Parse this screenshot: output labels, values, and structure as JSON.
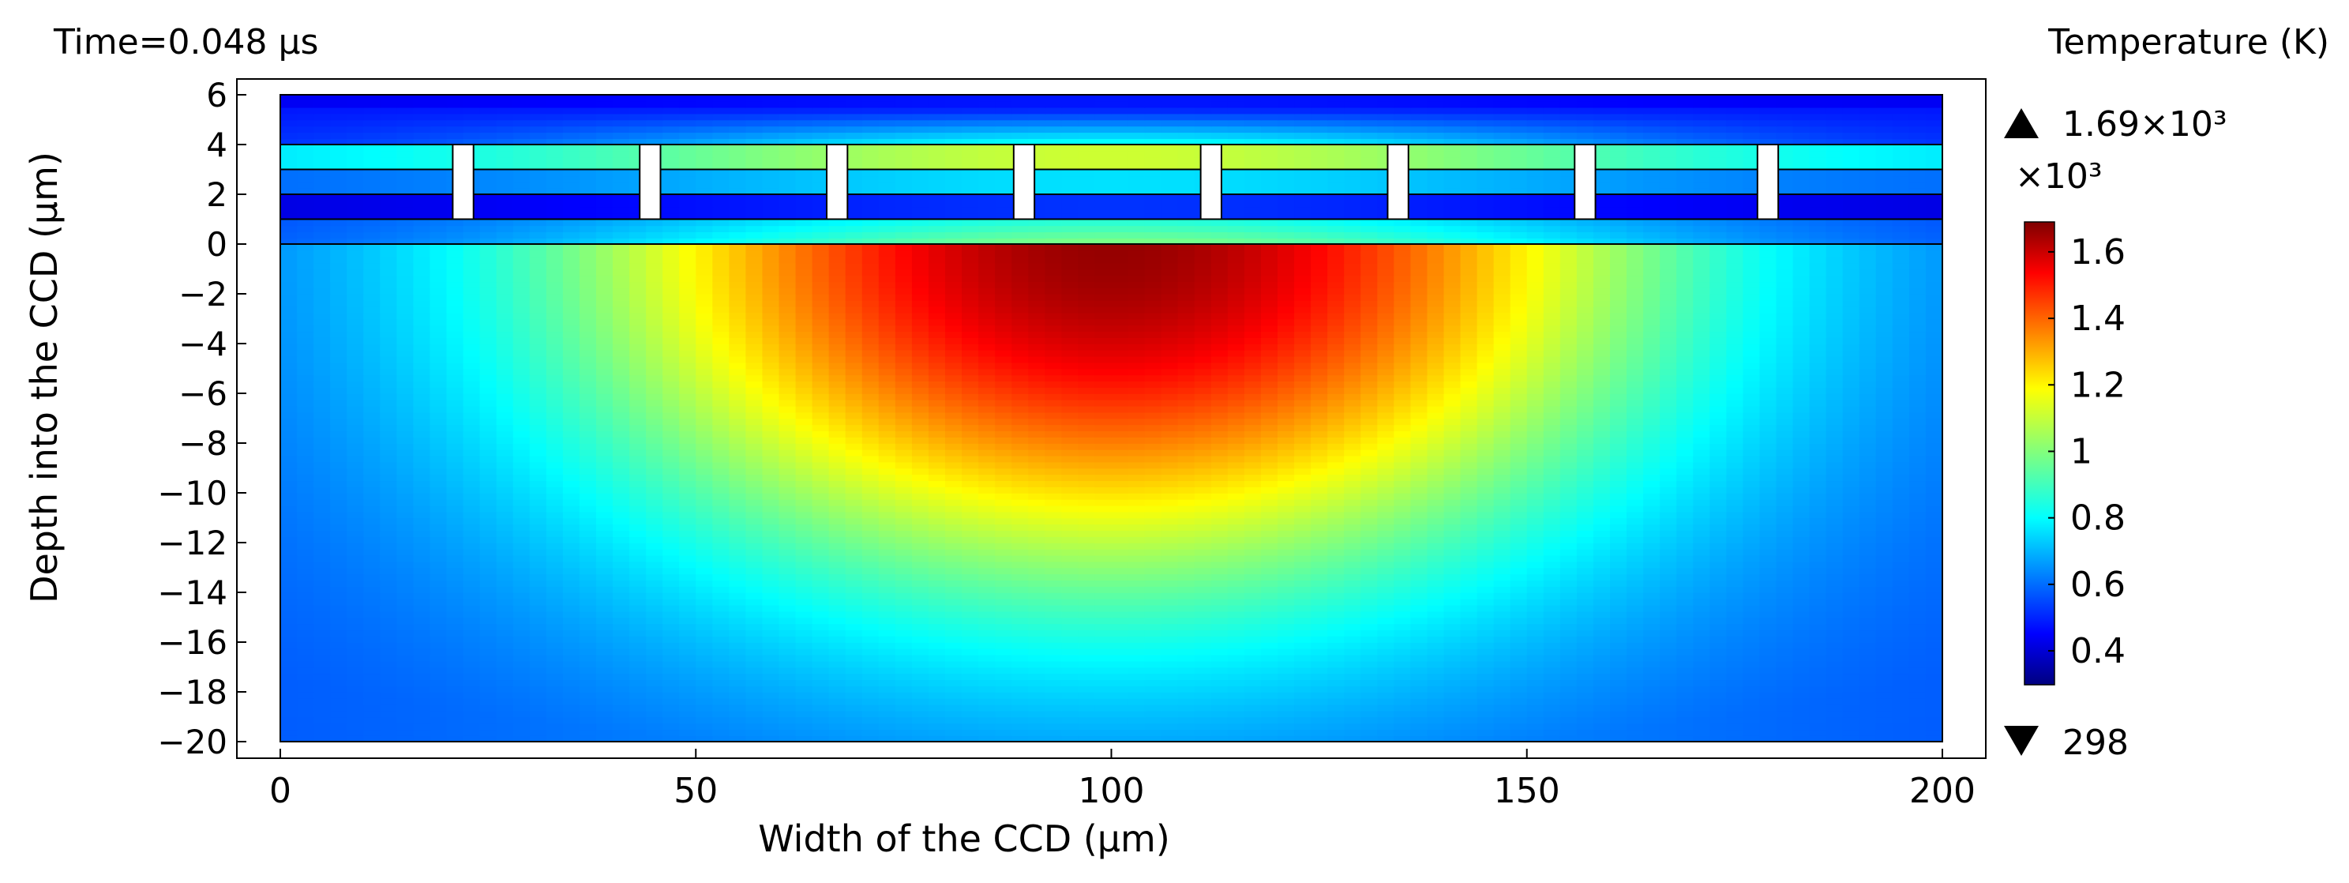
{
  "chart_data": {
    "type": "heatmap",
    "title": "Time=0.048 µs",
    "xlabel": "Width of the CCD (µm)",
    "ylabel": "Depth into the CCD (µm)",
    "xlim": [
      0,
      200
    ],
    "ylim": [
      -20,
      6
    ],
    "x_ticks": [
      0,
      50,
      100,
      150,
      200
    ],
    "y_ticks": [
      6,
      4,
      2,
      0,
      -2,
      -4,
      -6,
      -8,
      -10,
      -12,
      -14,
      -16,
      -18,
      -20
    ],
    "layer_boundaries": [
      0,
      1,
      2,
      3,
      4
    ],
    "electrodes": {
      "x": [
        22,
        44.5,
        67,
        89.5,
        112,
        134.5,
        157,
        179
      ],
      "width": 2.5,
      "y_range": [
        1,
        4
      ]
    },
    "colorbar": {
      "title": "Temperature (K)",
      "multiplier": "×10³",
      "colormap": "jet",
      "ticks": [
        {
          "value": 1.6,
          "label": "1.6"
        },
        {
          "value": 1.4,
          "label": "1.4"
        },
        {
          "value": 1.2,
          "label": "1.2"
        },
        {
          "value": 1.0,
          "label": "1"
        },
        {
          "value": 0.8,
          "label": "0.8"
        },
        {
          "value": 0.6,
          "label": "0.6"
        },
        {
          "value": 0.4,
          "label": "0.4"
        }
      ],
      "range": [
        0.298,
        1.69
      ],
      "max_label": "1.69×10³",
      "min_label": "298"
    },
    "peak": {
      "x": 100,
      "y": 0,
      "value_K": 1690
    },
    "ambient_K": 298
  }
}
